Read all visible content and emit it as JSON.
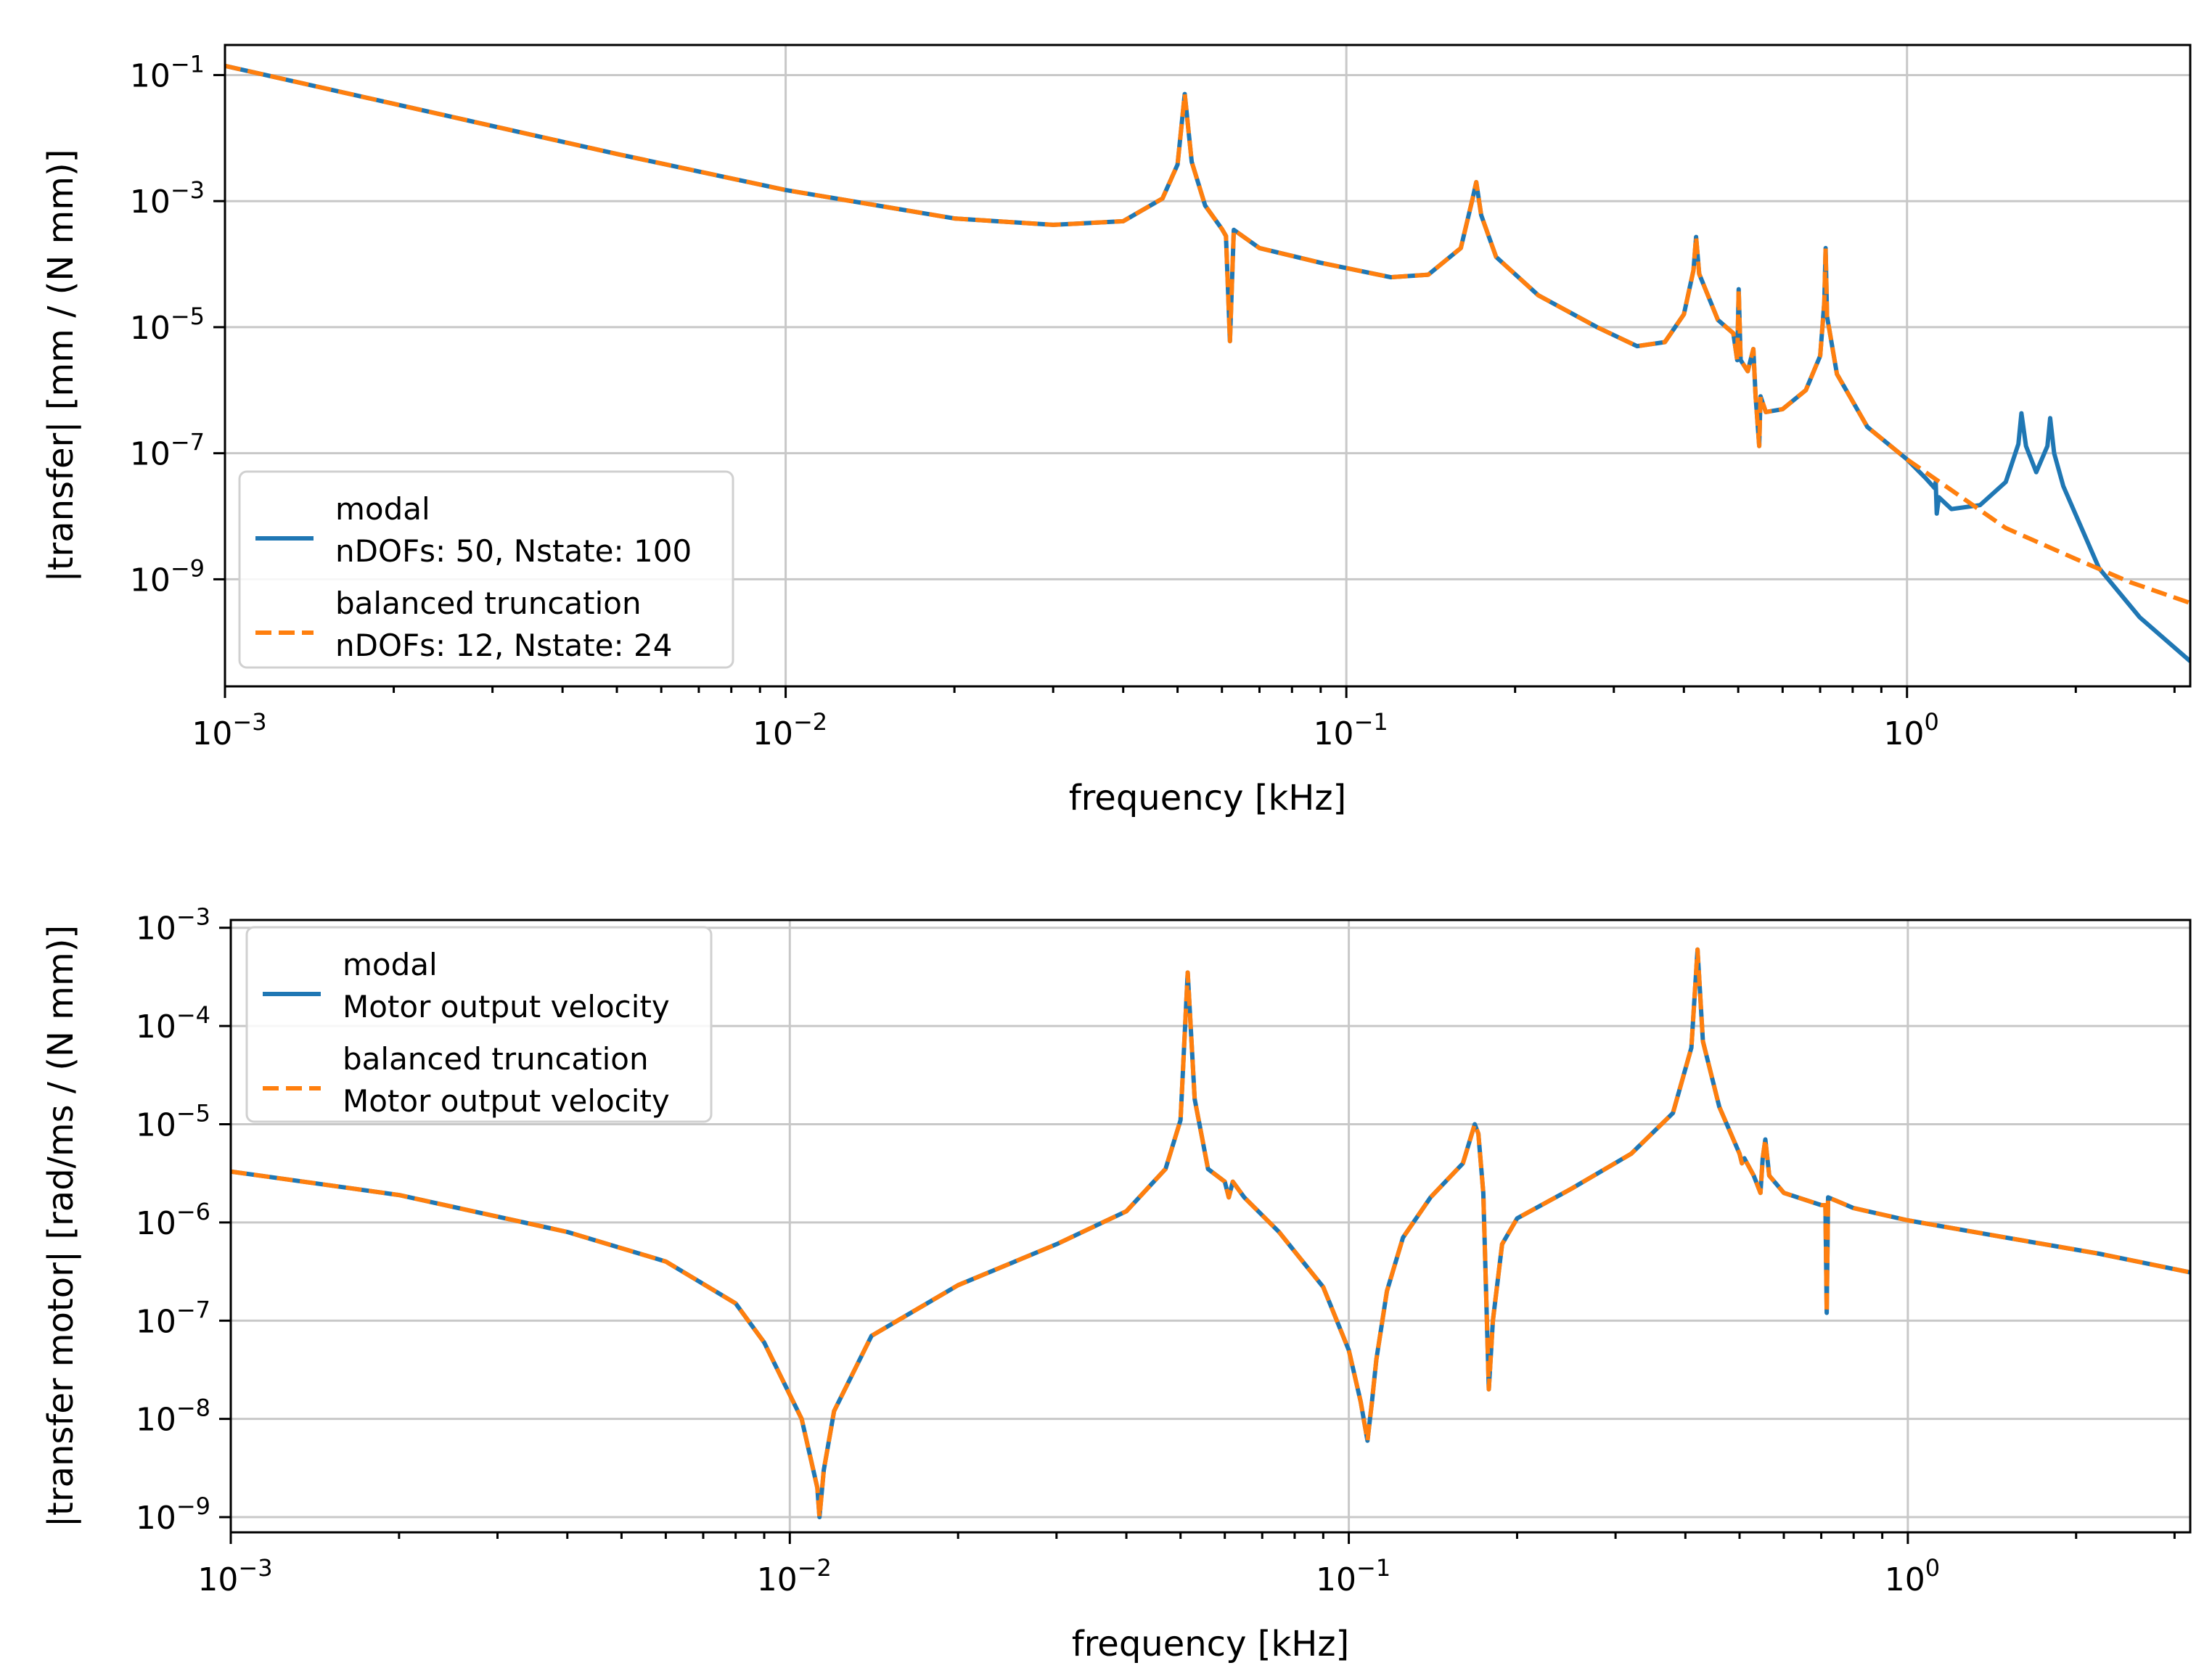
{
  "chart_data": [
    {
      "type": "line",
      "xscale": "log",
      "yscale": "log",
      "xlabel": "frequency [kHz]",
      "ylabel": "|transfer| [mm / (N mm)]",
      "xlim": [
        0.001,
        3.2
      ],
      "ylim": [
        2e-11,
        0.3
      ],
      "grid": true,
      "legend_position": "lower-left",
      "x_ticks": [
        {
          "value": 0.001,
          "label": "10",
          "exp": "−3"
        },
        {
          "value": 0.01,
          "label": "10",
          "exp": "−2"
        },
        {
          "value": 0.1,
          "label": "10",
          "exp": "−1"
        },
        {
          "value": 1,
          "label": "10",
          "exp": "0"
        }
      ],
      "y_ticks": [
        {
          "value": 0.1,
          "label": "10",
          "exp": "−1"
        },
        {
          "value": 0.001,
          "label": "10",
          "exp": "−3"
        },
        {
          "value": 1e-05,
          "label": "10",
          "exp": "−5"
        },
        {
          "value": 1e-07,
          "label": "10",
          "exp": "−7"
        },
        {
          "value": 1e-09,
          "label": "10",
          "exp": "−9"
        }
      ],
      "series": [
        {
          "name": "modal",
          "legend": [
            "modal",
            "nDOFs: 50, Nstate: 100"
          ],
          "color": "#1f77b4",
          "style": "solid",
          "x": [
            0.001,
            0.002,
            0.005,
            0.01,
            0.02,
            0.03,
            0.04,
            0.047,
            0.05,
            0.0515,
            0.053,
            0.056,
            0.06,
            0.061,
            0.062,
            0.063,
            0.07,
            0.09,
            0.12,
            0.14,
            0.16,
            0.168,
            0.1705,
            0.174,
            0.185,
            0.22,
            0.28,
            0.33,
            0.37,
            0.4,
            0.416,
            0.4205,
            0.426,
            0.46,
            0.49,
            0.498,
            0.501,
            0.505,
            0.52,
            0.532,
            0.537,
            0.545,
            0.548,
            0.56,
            0.6,
            0.66,
            0.7,
            0.712,
            0.716,
            0.72,
            0.75,
            0.85,
            1.0,
            1.08,
            1.12,
            1.125,
            1.13,
            1.14,
            1.2,
            1.35,
            1.5,
            1.58,
            1.6,
            1.63,
            1.7,
            1.78,
            1.8,
            1.83,
            1.9,
            2.2,
            2.6,
            3.2
          ],
          "y": [
            0.14,
            0.035,
            0.0056,
            0.0015,
            0.00053,
            0.00042,
            0.00048,
            0.0011,
            0.0038,
            0.05,
            0.0042,
            0.00085,
            0.00036,
            0.00028,
            6e-06,
            0.00035,
            0.00018,
            0.000105,
            6.2e-05,
            6.8e-05,
            0.00018,
            0.0011,
            0.002,
            0.0006,
            0.00013,
            3.2e-05,
            1e-05,
            5e-06,
            5.8e-06,
            1.6e-05,
            8e-05,
            0.00027,
            7e-05,
            1.3e-05,
            8e-06,
            3e-06,
            4e-05,
            3e-06,
            2e-06,
            4.5e-06,
            8e-07,
            1.3e-07,
            8e-07,
            4.5e-07,
            5e-07,
            1e-06,
            3.5e-06,
            2.5e-05,
            0.00018,
            1.5e-05,
            1.8e-06,
            2.6e-07,
            8e-08,
            4e-08,
            2.8e-08,
            3.5e-08,
            1.1e-08,
            2e-08,
            1.3e-08,
            1.5e-08,
            3.5e-08,
            1.4e-07,
            4.3e-07,
            1.3e-07,
            5e-08,
            1.3e-07,
            3.6e-07,
            1e-07,
            3e-08,
            1.5e-09,
            2.5e-10,
            5e-11
          ]
        },
        {
          "name": "balanced truncation",
          "legend": [
            "balanced truncation",
            "nDOFs: 12, Nstate: 24"
          ],
          "color": "#ff7f0e",
          "style": "dashed",
          "x": [
            0.001,
            0.002,
            0.005,
            0.01,
            0.02,
            0.03,
            0.04,
            0.047,
            0.05,
            0.0515,
            0.053,
            0.056,
            0.06,
            0.061,
            0.062,
            0.063,
            0.07,
            0.09,
            0.12,
            0.14,
            0.16,
            0.168,
            0.1705,
            0.174,
            0.185,
            0.22,
            0.28,
            0.33,
            0.37,
            0.4,
            0.416,
            0.4205,
            0.426,
            0.46,
            0.49,
            0.498,
            0.501,
            0.505,
            0.52,
            0.532,
            0.537,
            0.545,
            0.548,
            0.56,
            0.6,
            0.66,
            0.7,
            0.712,
            0.716,
            0.72,
            0.75,
            0.85,
            1.0,
            1.2,
            1.5,
            2.0,
            2.5,
            3.2
          ],
          "y": [
            0.14,
            0.035,
            0.0056,
            0.0015,
            0.00053,
            0.00042,
            0.00048,
            0.0011,
            0.0038,
            0.05,
            0.0042,
            0.00085,
            0.00036,
            0.00028,
            6e-06,
            0.00035,
            0.00018,
            0.000105,
            6.2e-05,
            6.8e-05,
            0.00018,
            0.0011,
            0.002,
            0.0006,
            0.00013,
            3.2e-05,
            1e-05,
            5e-06,
            5.8e-06,
            1.6e-05,
            8e-05,
            0.00027,
            7e-05,
            1.3e-05,
            8e-06,
            3e-06,
            4e-05,
            3e-06,
            2e-06,
            4.5e-06,
            8e-07,
            1.3e-07,
            8e-07,
            4.5e-07,
            5e-07,
            1e-06,
            3.5e-06,
            2.5e-05,
            0.00018,
            1.5e-05,
            1.8e-06,
            2.6e-07,
            8e-08,
            2.6e-08,
            6.5e-09,
            2.1e-09,
            9e-10,
            4.2e-10
          ]
        }
      ]
    },
    {
      "type": "line",
      "xscale": "log",
      "yscale": "log",
      "xlabel": "frequency [kHz]",
      "ylabel": "|transfer motor| [rad/ms / (N mm)]",
      "xlim": [
        0.001,
        3.2
      ],
      "ylim": [
        7e-10,
        0.0012
      ],
      "grid": true,
      "legend_position": "top-left",
      "x_ticks": [
        {
          "value": 0.001,
          "label": "10",
          "exp": "−3"
        },
        {
          "value": 0.01,
          "label": "10",
          "exp": "−2"
        },
        {
          "value": 0.1,
          "label": "10",
          "exp": "−1"
        },
        {
          "value": 1,
          "label": "10",
          "exp": "0"
        }
      ],
      "y_ticks": [
        {
          "value": 0.001,
          "label": "10",
          "exp": "−3"
        },
        {
          "value": 0.0001,
          "label": "10",
          "exp": "−4"
        },
        {
          "value": 1e-05,
          "label": "10",
          "exp": "−5"
        },
        {
          "value": 1e-06,
          "label": "10",
          "exp": "−6"
        },
        {
          "value": 1e-07,
          "label": "10",
          "exp": "−7"
        },
        {
          "value": 1e-08,
          "label": "10",
          "exp": "−8"
        },
        {
          "value": 1e-09,
          "label": "10",
          "exp": "−9"
        }
      ],
      "series": [
        {
          "name": "modal",
          "legend": [
            "modal",
            "Motor output velocity"
          ],
          "color": "#1f77b4",
          "style": "solid",
          "x": [
            0.001,
            0.002,
            0.004,
            0.006,
            0.008,
            0.009,
            0.0105,
            0.0112,
            0.0113,
            0.0115,
            0.012,
            0.014,
            0.02,
            0.03,
            0.04,
            0.047,
            0.05,
            0.0515,
            0.053,
            0.056,
            0.06,
            0.061,
            0.062,
            0.065,
            0.075,
            0.09,
            0.1,
            0.105,
            0.108,
            0.11,
            0.112,
            0.117,
            0.125,
            0.14,
            0.16,
            0.168,
            0.1705,
            0.174,
            0.178,
            0.181,
            0.188,
            0.2,
            0.25,
            0.32,
            0.38,
            0.41,
            0.4205,
            0.43,
            0.46,
            0.5,
            0.505,
            0.51,
            0.53,
            0.545,
            0.55,
            0.556,
            0.565,
            0.6,
            0.7,
            0.712,
            0.716,
            0.72,
            0.8,
            1.0,
            1.5,
            2.2,
            3.2
          ],
          "y": [
            3.3e-06,
            1.9e-06,
            8e-07,
            4e-07,
            1.5e-07,
            6e-08,
            1e-08,
            2e-09,
            1e-09,
            3e-09,
            1.2e-08,
            7e-08,
            2.3e-07,
            6e-07,
            1.3e-06,
            3.5e-06,
            1.1e-05,
            0.00035,
            1.8e-05,
            3.5e-06,
            2.6e-06,
            1.8e-06,
            2.6e-06,
            1.8e-06,
            8e-07,
            2.2e-07,
            5e-08,
            1.5e-08,
            6e-09,
            1.5e-08,
            4e-08,
            2e-07,
            7e-07,
            1.8e-06,
            4e-06,
            1e-05,
            8e-06,
            2e-06,
            2e-08,
            1e-07,
            6e-07,
            1.1e-06,
            2.2e-06,
            5e-06,
            1.3e-05,
            6e-05,
            0.0006,
            7e-05,
            1.5e-05,
            5e-06,
            4e-06,
            4.5e-06,
            3e-06,
            2e-06,
            4.5e-06,
            7e-06,
            3e-06,
            2e-06,
            1.5e-06,
            1.5e-06,
            1.2e-07,
            1.8e-06,
            1.4e-06,
            1.05e-06,
            7e-07,
            4.8e-07,
            3.1e-07
          ]
        },
        {
          "name": "balanced truncation",
          "legend": [
            "balanced truncation",
            "Motor output velocity"
          ],
          "color": "#ff7f0e",
          "style": "dashed",
          "x": [
            0.001,
            0.002,
            0.004,
            0.006,
            0.008,
            0.009,
            0.0105,
            0.0112,
            0.0113,
            0.0115,
            0.012,
            0.014,
            0.02,
            0.03,
            0.04,
            0.047,
            0.05,
            0.0515,
            0.053,
            0.056,
            0.06,
            0.061,
            0.062,
            0.065,
            0.075,
            0.09,
            0.1,
            0.105,
            0.108,
            0.11,
            0.112,
            0.117,
            0.125,
            0.14,
            0.16,
            0.168,
            0.1705,
            0.174,
            0.178,
            0.181,
            0.188,
            0.2,
            0.25,
            0.32,
            0.38,
            0.41,
            0.4205,
            0.43,
            0.46,
            0.5,
            0.505,
            0.51,
            0.53,
            0.545,
            0.55,
            0.556,
            0.565,
            0.6,
            0.7,
            0.712,
            0.716,
            0.72,
            0.8,
            1.0,
            1.5,
            2.2,
            3.2
          ],
          "y": [
            3.3e-06,
            1.9e-06,
            8e-07,
            4e-07,
            1.5e-07,
            6e-08,
            1e-08,
            2e-09,
            1e-09,
            3e-09,
            1.2e-08,
            7e-08,
            2.3e-07,
            6e-07,
            1.3e-06,
            3.5e-06,
            1.1e-05,
            0.00035,
            1.8e-05,
            3.5e-06,
            2.6e-06,
            1.8e-06,
            2.6e-06,
            1.8e-06,
            8e-07,
            2.2e-07,
            5e-08,
            1.5e-08,
            6e-09,
            1.5e-08,
            4e-08,
            2e-07,
            7e-07,
            1.8e-06,
            4e-06,
            1e-05,
            8e-06,
            2e-06,
            2e-08,
            1e-07,
            6e-07,
            1.1e-06,
            2.2e-06,
            5e-06,
            1.3e-05,
            6e-05,
            0.0006,
            7e-05,
            1.5e-05,
            5e-06,
            4e-06,
            4.5e-06,
            3e-06,
            2e-06,
            4.5e-06,
            7e-06,
            3e-06,
            2e-06,
            1.5e-06,
            1.5e-06,
            1.2e-07,
            1.8e-06,
            1.4e-06,
            1.05e-06,
            7e-07,
            4.8e-07,
            3.1e-07
          ]
        }
      ]
    }
  ]
}
